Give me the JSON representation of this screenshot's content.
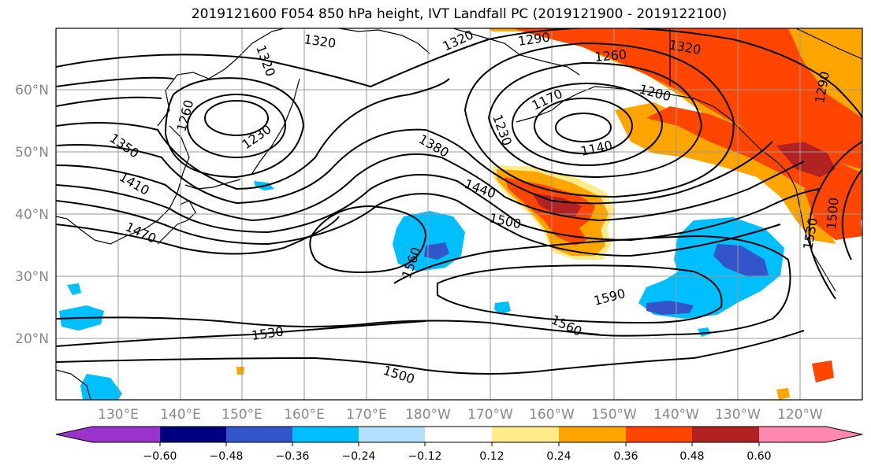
{
  "title": "2019121600 F054 850 hPa height, IVT Landfall PC (2019121900 - 2019122100)",
  "lat_labels": [
    "60°N",
    "50°N",
    "40°N",
    "30°N",
    "20°N"
  ],
  "lon_labels": [
    "130°E",
    "140°E",
    "150°E",
    "160°E",
    "170°E",
    "180°W",
    "170°W",
    "160°W",
    "150°W",
    "140°W",
    "130°W",
    "120°W"
  ],
  "contour_labels": [
    "1320",
    "1320",
    "1320",
    "1320",
    "1290",
    "1290",
    "1260",
    "1260",
    "1230",
    "1230",
    "1200",
    "1170",
    "1140",
    "1350",
    "1380",
    "1410",
    "1440",
    "1470",
    "1500",
    "1500",
    "1530",
    "1530",
    "1560",
    "1560",
    "1590",
    "1500"
  ],
  "colorbar": {
    "ticks": [
      "−0.60",
      "−0.48",
      "−0.36",
      "−0.24",
      "−0.12",
      "0.12",
      "0.24",
      "0.36",
      "0.48",
      "0.60"
    ],
    "colors": [
      "#9933cc",
      "#000080",
      "#3355cc",
      "#00bfff",
      "#b3e0ff",
      "#ffffff",
      "#ffeb8a",
      "#ffa500",
      "#ff4500",
      "#b22222",
      "#ff88b0"
    ]
  },
  "colors": {
    "orange": "#ffa500",
    "red_orange": "#ff4500",
    "dark_red": "#b22222",
    "light_blue": "#00bfff",
    "medium_blue": "#3355cc",
    "pale_yellow": "#ffeb8a"
  }
}
